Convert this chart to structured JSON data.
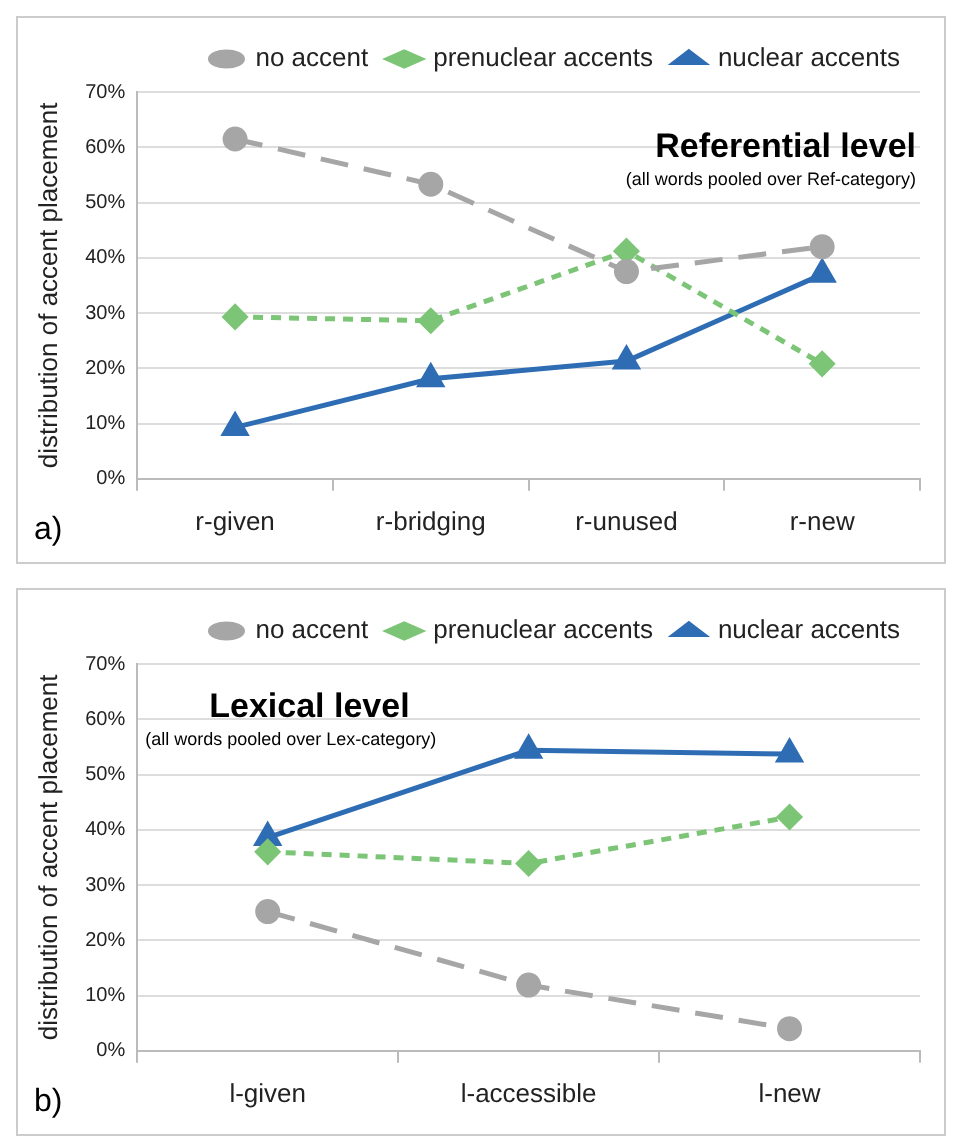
{
  "chart_data": [
    {
      "type": "line",
      "title": "Referential level",
      "subtitle": "(all words pooled over Ref-category)",
      "ylabel": "distribution of accent placement",
      "annotations": [
        "a)"
      ],
      "categories": [
        "r-given",
        "r-bridging",
        "r-unused",
        "r-new"
      ],
      "series": [
        {
          "name": "no accent",
          "color": "#a6a6a6",
          "marker": "circle",
          "line_style": "dashed",
          "values": [
            61.5,
            53.3,
            37.5,
            42
          ]
        },
        {
          "name": "prenuclear accents",
          "color": "#7cc576",
          "marker": "diamond",
          "line_style": "dotted",
          "values": [
            29.3,
            28.6,
            41.2,
            20.8
          ]
        },
        {
          "name": "nuclear accents",
          "color": "#2e6db4",
          "marker": "triangle",
          "line_style": "solid",
          "values": [
            9.3,
            18.1,
            21.3,
            37
          ]
        }
      ],
      "ylim": [
        0,
        70
      ],
      "yticks": [
        {
          "value": 0,
          "label": "0%"
        },
        {
          "value": 10,
          "label": "10%"
        },
        {
          "value": 20,
          "label": "20%"
        },
        {
          "value": 30,
          "label": "30%"
        },
        {
          "value": 40,
          "label": "40%"
        },
        {
          "value": 50,
          "label": "50%"
        },
        {
          "value": 60,
          "label": "60%"
        },
        {
          "value": 70,
          "label": "70%"
        }
      ],
      "grid": "y",
      "legend": "top"
    },
    {
      "type": "line",
      "title": "Lexical level",
      "subtitle": "(all words pooled over Lex-category)",
      "ylabel": "distribution of accent placement",
      "annotations": [
        "b)"
      ],
      "categories": [
        "l-given",
        "l-accessible",
        "l-new"
      ],
      "series": [
        {
          "name": "no accent",
          "color": "#a6a6a6",
          "marker": "circle",
          "line_style": "dashed",
          "values": [
            25.2,
            11.9,
            4.0
          ]
        },
        {
          "name": "prenuclear accents",
          "color": "#7cc576",
          "marker": "diamond",
          "line_style": "dotted",
          "values": [
            36,
            33.9,
            42.3
          ]
        },
        {
          "name": "nuclear accents",
          "color": "#2e6db4",
          "marker": "triangle",
          "line_style": "solid",
          "values": [
            38.6,
            54.4,
            53.7
          ]
        }
      ],
      "ylim": [
        0,
        70
      ],
      "yticks": [
        {
          "value": 0,
          "label": "0%"
        },
        {
          "value": 10,
          "label": "10%"
        },
        {
          "value": 20,
          "label": "20%"
        },
        {
          "value": 30,
          "label": "30%"
        },
        {
          "value": 40,
          "label": "40%"
        },
        {
          "value": 50,
          "label": "50%"
        },
        {
          "value": 60,
          "label": "60%"
        },
        {
          "value": 70,
          "label": "70%"
        }
      ],
      "grid": "y",
      "legend": "top"
    }
  ]
}
